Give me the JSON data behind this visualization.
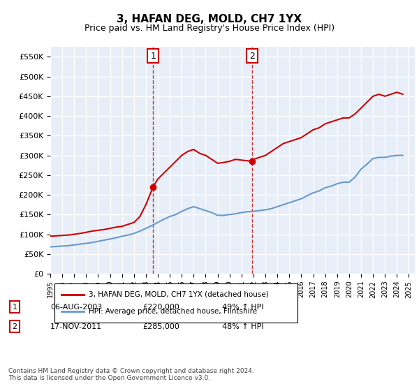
{
  "title": "3, HAFAN DEG, MOLD, CH7 1YX",
  "subtitle": "Price paid vs. HM Land Registry's House Price Index (HPI)",
  "title_fontsize": 12,
  "subtitle_fontsize": 10,
  "ylim": [
    0,
    575000
  ],
  "xlim_start": 1995.0,
  "xlim_end": 2025.5,
  "yticks": [
    0,
    50000,
    100000,
    150000,
    200000,
    250000,
    300000,
    350000,
    400000,
    450000,
    500000,
    550000
  ],
  "ytick_labels": [
    "£0",
    "£50K",
    "£100K",
    "£150K",
    "£200K",
    "£250K",
    "£300K",
    "£350K",
    "£400K",
    "£450K",
    "£500K",
    "£550K"
  ],
  "xticks": [
    1995,
    1996,
    1997,
    1998,
    1999,
    2000,
    2001,
    2002,
    2003,
    2004,
    2005,
    2006,
    2007,
    2008,
    2009,
    2010,
    2011,
    2012,
    2013,
    2014,
    2015,
    2016,
    2017,
    2018,
    2019,
    2020,
    2021,
    2022,
    2023,
    2024,
    2025
  ],
  "background_color": "#e8eef8",
  "plot_bg_color": "#e8eef8",
  "grid_color": "#ffffff",
  "red_line_color": "#cc0000",
  "blue_line_color": "#6699cc",
  "vline_color": "#cc0000",
  "vline1_x": 2003.6,
  "vline2_x": 2011.88,
  "annotation1_label": "1",
  "annotation2_label": "2",
  "sale1_date": "06-AUG-2003",
  "sale1_price": "£220,000",
  "sale1_hpi": "49% ↑ HPI",
  "sale2_date": "17-NOV-2011",
  "sale2_price": "£285,000",
  "sale2_hpi": "48% ↑ HPI",
  "legend_label_red": "3, HAFAN DEG, MOLD, CH7 1YX (detached house)",
  "legend_label_blue": "HPI: Average price, detached house, Flintshire",
  "footer_text": "Contains HM Land Registry data © Crown copyright and database right 2024.\nThis data is licensed under the Open Government Licence v3.0.",
  "red_x": [
    1995.0,
    1995.5,
    1996.0,
    1996.5,
    1997.0,
    1997.5,
    1998.0,
    1998.5,
    1999.0,
    1999.5,
    2000.0,
    2000.5,
    2001.0,
    2001.5,
    2002.0,
    2002.5,
    2003.0,
    2003.6,
    2004.0,
    2004.5,
    2005.0,
    2005.5,
    2006.0,
    2006.5,
    2007.0,
    2007.5,
    2008.0,
    2008.5,
    2009.0,
    2009.5,
    2010.0,
    2010.5,
    2011.0,
    2011.88,
    2012.0,
    2012.5,
    2013.0,
    2013.5,
    2014.0,
    2014.5,
    2015.0,
    2015.5,
    2016.0,
    2016.5,
    2017.0,
    2017.5,
    2018.0,
    2018.5,
    2019.0,
    2019.5,
    2020.0,
    2020.5,
    2021.0,
    2021.5,
    2022.0,
    2022.5,
    2023.0,
    2023.5,
    2024.0,
    2024.5
  ],
  "red_y": [
    95000,
    96000,
    97000,
    98000,
    100000,
    102000,
    105000,
    108000,
    110000,
    112000,
    115000,
    118000,
    120000,
    125000,
    130000,
    145000,
    175000,
    220000,
    240000,
    255000,
    270000,
    285000,
    300000,
    310000,
    315000,
    305000,
    300000,
    290000,
    280000,
    282000,
    285000,
    290000,
    288000,
    285000,
    290000,
    295000,
    300000,
    310000,
    320000,
    330000,
    335000,
    340000,
    345000,
    355000,
    365000,
    370000,
    380000,
    385000,
    390000,
    395000,
    395000,
    405000,
    420000,
    435000,
    450000,
    455000,
    450000,
    455000,
    460000,
    455000
  ],
  "blue_x": [
    1995.0,
    1995.5,
    1996.0,
    1996.5,
    1997.0,
    1997.5,
    1998.0,
    1998.5,
    1999.0,
    1999.5,
    2000.0,
    2000.5,
    2001.0,
    2001.5,
    2002.0,
    2002.5,
    2003.0,
    2003.5,
    2004.0,
    2004.5,
    2005.0,
    2005.5,
    2006.0,
    2006.5,
    2007.0,
    2007.5,
    2008.0,
    2008.5,
    2009.0,
    2009.5,
    2010.0,
    2010.5,
    2011.0,
    2011.5,
    2012.0,
    2012.5,
    2013.0,
    2013.5,
    2014.0,
    2014.5,
    2015.0,
    2015.5,
    2016.0,
    2016.5,
    2017.0,
    2017.5,
    2018.0,
    2018.5,
    2019.0,
    2019.5,
    2020.0,
    2020.5,
    2021.0,
    2021.5,
    2022.0,
    2022.5,
    2023.0,
    2023.5,
    2024.0,
    2024.5
  ],
  "blue_y": [
    68000,
    69000,
    70000,
    71000,
    73000,
    75000,
    77000,
    79000,
    82000,
    85000,
    88000,
    91000,
    95000,
    98000,
    102000,
    108000,
    115000,
    122000,
    130000,
    138000,
    145000,
    150000,
    158000,
    165000,
    170000,
    165000,
    160000,
    155000,
    148000,
    148000,
    150000,
    152000,
    155000,
    157000,
    158000,
    160000,
    162000,
    165000,
    170000,
    175000,
    180000,
    185000,
    190000,
    198000,
    205000,
    210000,
    218000,
    222000,
    228000,
    232000,
    232000,
    245000,
    265000,
    278000,
    292000,
    295000,
    295000,
    298000,
    300000,
    300000
  ]
}
